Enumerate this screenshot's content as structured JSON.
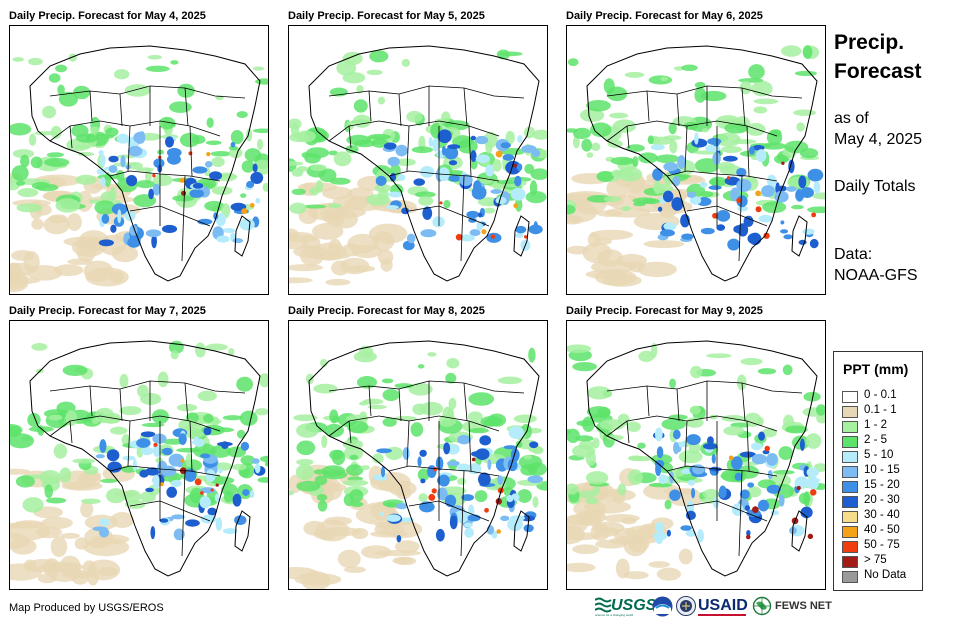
{
  "panels": [
    {
      "title": "Daily Precip. Forecast for May 4, 2025"
    },
    {
      "title": "Daily Precip. Forecast for May 5, 2025"
    },
    {
      "title": "Daily Precip. Forecast for May 6, 2025"
    },
    {
      "title": "Daily Precip. Forecast for May 7, 2025"
    },
    {
      "title": "Daily Precip. Forecast for May 8, 2025"
    },
    {
      "title": "Daily Precip. Forecast for May 9, 2025"
    }
  ],
  "side": {
    "title_line1": "Precip.",
    "title_line2": "Forecast",
    "asof_line1": "as of",
    "asof_line2": "May 4, 2025",
    "daily": "Daily Totals",
    "data_label": "Data:",
    "data_source": "NOAA-GFS"
  },
  "legend": {
    "title": "PPT (mm)",
    "items": [
      {
        "label": "0 - 0.1",
        "color": "#ffffff"
      },
      {
        "label": "0.1 - 1",
        "color": "#e8d7b4"
      },
      {
        "label": "1 - 2",
        "color": "#a6f0a0"
      },
      {
        "label": "2 - 5",
        "color": "#5de36a"
      },
      {
        "label": "5 - 10",
        "color": "#b5ecfb"
      },
      {
        "label": "10 - 15",
        "color": "#7cbcf2"
      },
      {
        "label": "15 - 20",
        "color": "#3e8fe6"
      },
      {
        "label": "20 - 30",
        "color": "#1e5fd0"
      },
      {
        "label": "30 - 40",
        "color": "#f7dc8b"
      },
      {
        "label": "40 - 50",
        "color": "#f5a21b"
      },
      {
        "label": "50 - 75",
        "color": "#ef3d10"
      },
      {
        "label": "> 75",
        "color": "#a11c14"
      },
      {
        "label": "No Data",
        "color": "#9a9a9a"
      }
    ]
  },
  "footer": {
    "credit": "Map Produced by USGS/EROS",
    "logo_usgs": "USGS",
    "logo_usgs_tagline": "science for a changing world",
    "logo_usaid": "USAID",
    "logo_fews": "FEWS NET"
  }
}
